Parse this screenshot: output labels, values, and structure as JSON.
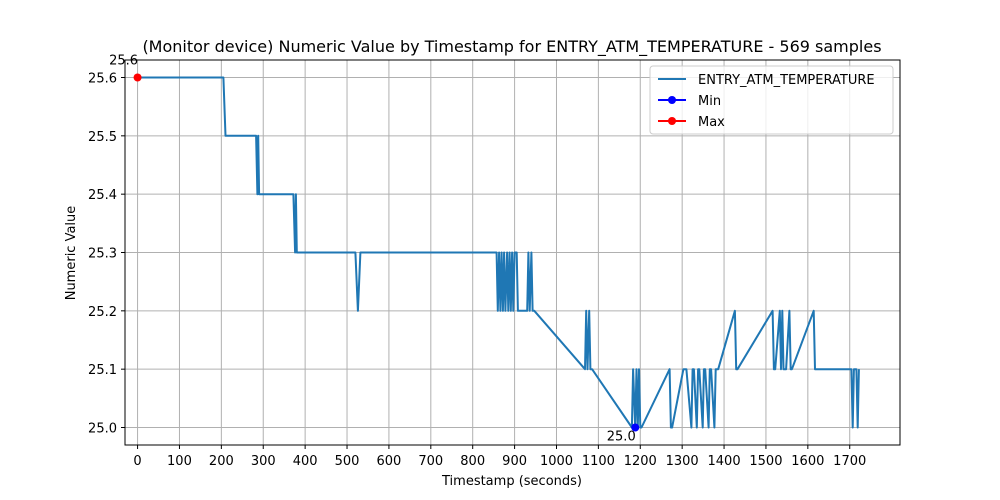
{
  "chart_data": {
    "type": "line",
    "title": "(Monitor device) Numeric Value by Timestamp for ENTRY_ATM_TEMPERATURE - 569 samples",
    "xlabel": "Timestamp (seconds)",
    "ylabel": "Numeric Value",
    "xlim": [
      -30,
      1820
    ],
    "ylim": [
      24.97,
      25.63
    ],
    "xticks": [
      0,
      100,
      200,
      300,
      400,
      500,
      600,
      700,
      800,
      900,
      1000,
      1100,
      1200,
      1300,
      1400,
      1500,
      1600,
      1700
    ],
    "yticks": [
      25.0,
      25.1,
      25.2,
      25.3,
      25.4,
      25.5,
      25.6
    ],
    "ytick_labels": [
      "25.0",
      "25.1",
      "25.2",
      "25.3",
      "25.4",
      "25.5",
      "25.6"
    ],
    "grid": true,
    "legend_position": "top-right",
    "colors": {
      "series": "#1f77b4",
      "min": "#0000ff",
      "max": "#ff0000",
      "grid": "#b0b0b0"
    },
    "series": [
      {
        "name": "ENTRY_ATM_TEMPERATURE",
        "x": [
          0,
          205,
          210,
          283,
          286,
          288,
          290,
          292,
          372,
          376,
          378,
          380,
          385,
          520,
          526,
          532,
          857,
          860,
          863,
          866,
          869,
          872,
          875,
          878,
          882,
          885,
          888,
          891,
          894,
          897,
          900,
          905,
          908,
          912,
          915,
          930,
          933,
          936,
          940,
          943,
          947,
          1068,
          1071,
          1074,
          1078,
          1081,
          1085,
          1180,
          1183,
          1188,
          1191,
          1194,
          1197,
          1200,
          1203,
          1270,
          1273,
          1276,
          1303,
          1306,
          1310,
          1322,
          1325,
          1328,
          1335,
          1338,
          1341,
          1349,
          1352,
          1355,
          1363,
          1366,
          1369,
          1377,
          1380,
          1383,
          1386,
          1426,
          1429,
          1432,
          1516,
          1519,
          1522,
          1533,
          1536,
          1539,
          1542,
          1545,
          1548,
          1556,
          1559,
          1562,
          1614,
          1617,
          1620,
          1704,
          1707,
          1710,
          1713,
          1716,
          1719,
          1722
        ],
        "y": [
          25.6,
          25.6,
          25.5,
          25.5,
          25.4,
          25.5,
          25.4,
          25.4,
          25.4,
          25.3,
          25.4,
          25.3,
          25.3,
          25.3,
          25.2,
          25.3,
          25.3,
          25.2,
          25.3,
          25.2,
          25.3,
          25.2,
          25.3,
          25.2,
          25.3,
          25.2,
          25.3,
          25.2,
          25.3,
          25.2,
          25.3,
          25.3,
          25.2,
          25.2,
          25.2,
          25.2,
          25.3,
          25.2,
          25.3,
          25.2,
          25.2,
          25.1,
          25.2,
          25.1,
          25.2,
          25.1,
          25.1,
          25.0,
          25.1,
          25.0,
          25.1,
          25.0,
          25.1,
          25.0,
          25.0,
          25.1,
          25.0,
          25.0,
          25.1,
          25.1,
          25.1,
          25.0,
          25.1,
          25.1,
          25.0,
          25.1,
          25.1,
          25.0,
          25.1,
          25.1,
          25.0,
          25.1,
          25.1,
          25.0,
          25.1,
          25.1,
          25.1,
          25.2,
          25.1,
          25.1,
          25.2,
          25.1,
          25.1,
          25.2,
          25.1,
          25.2,
          25.1,
          25.1,
          25.1,
          25.2,
          25.1,
          25.1,
          25.2,
          25.1,
          25.1,
          25.1,
          25.0,
          25.1,
          25.1,
          25.1,
          25.0,
          25.1
        ]
      },
      {
        "name": "Min",
        "marker": "circle",
        "x": [
          1188
        ],
        "y": [
          25.0
        ],
        "label": "25.0"
      },
      {
        "name": "Max",
        "marker": "circle",
        "x": [
          0
        ],
        "y": [
          25.6
        ],
        "label": "25.6"
      }
    ]
  }
}
